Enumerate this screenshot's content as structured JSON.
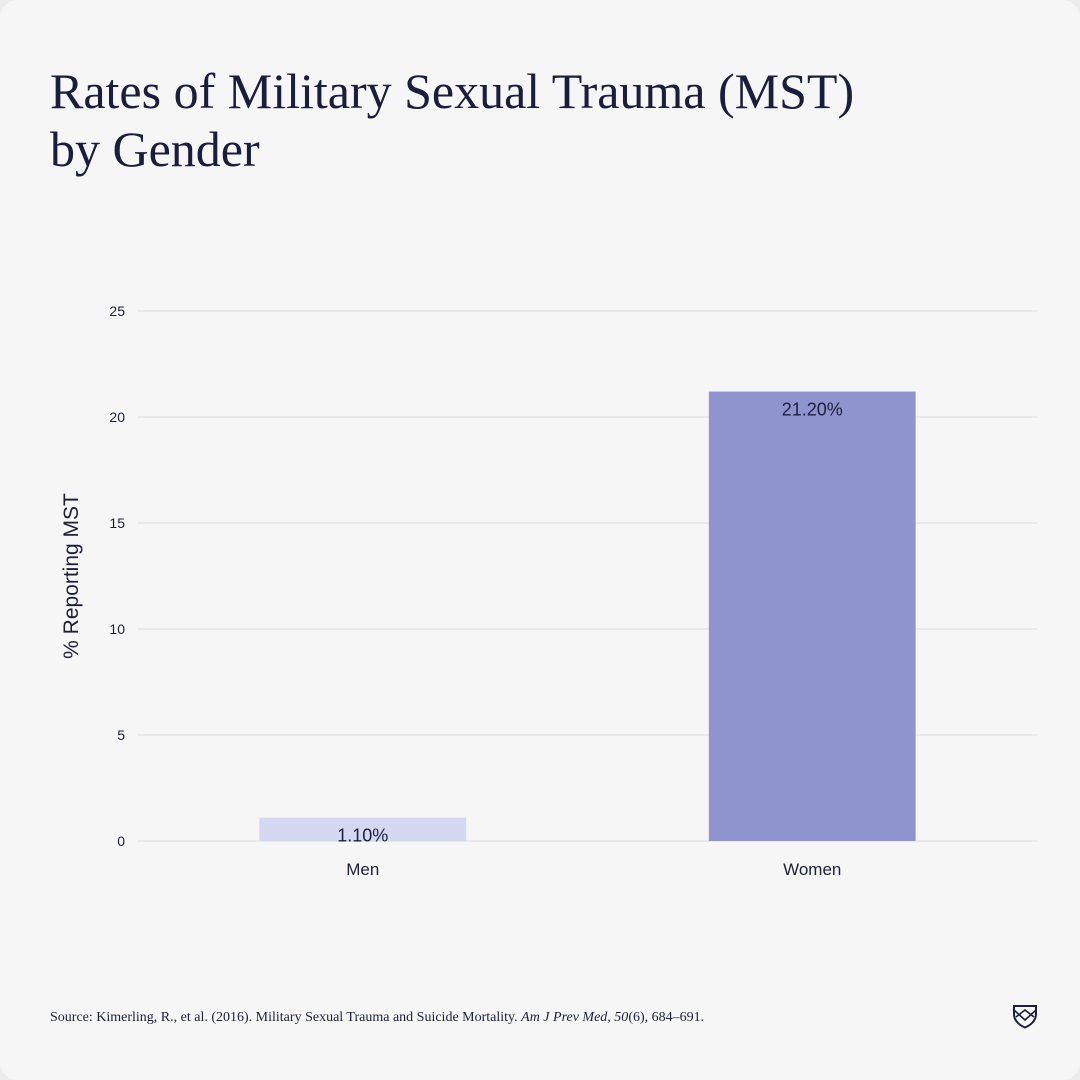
{
  "title_lines": [
    "Rates of Military Sexual Trauma (MST)",
    "by Gender"
  ],
  "source": {
    "prefix": "Source: Kimerling, R., et al. (2016). Military Sexual Trauma and Suicide Mortality.",
    "journal": "Am J Prev Med, 50",
    "issue": "(6), 684–691."
  },
  "logo": {
    "icon": "shield-crest-icon",
    "color": "#1c1f3c"
  },
  "chart_data": {
    "type": "bar",
    "title": "Rates of Military Sexual Trauma (MST) by Gender",
    "xlabel": "",
    "ylabel": "% Reporting MST",
    "categories": [
      "Men",
      "Women"
    ],
    "values": [
      1.1,
      21.2
    ],
    "value_labels": [
      "1.10%",
      "21.20%"
    ],
    "bar_colors": [
      "#d5d8f1",
      "#9094ce"
    ],
    "ylim": [
      0,
      25
    ],
    "yticks": [
      0,
      5,
      10,
      15,
      20,
      25
    ],
    "grid": true,
    "legend": "none",
    "colors": {
      "grid": "#dcdcdc",
      "text": "#1c1f3c"
    }
  }
}
